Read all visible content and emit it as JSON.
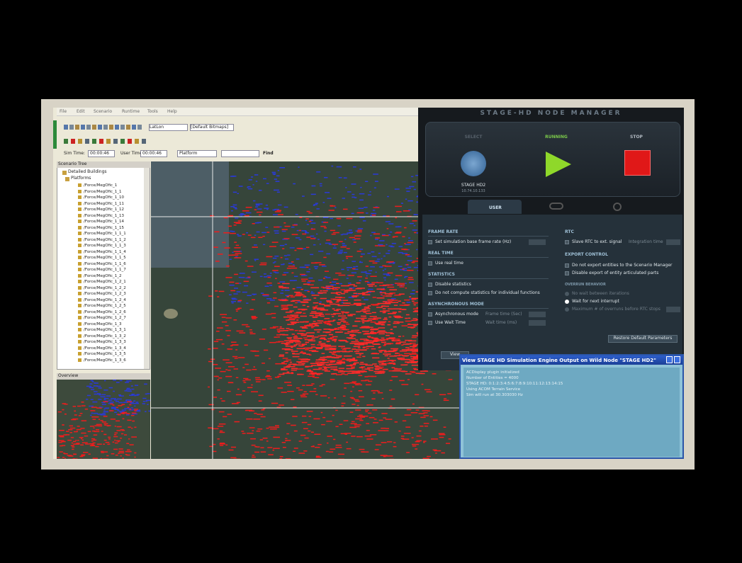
{
  "menu": [
    "File",
    "Edit",
    "Scenario",
    "Runtime",
    "Tools",
    "Help"
  ],
  "toolbar": {
    "coordinate_system": "LatLon",
    "map_layer": "[Default Bitmaps]",
    "sim_time_label": "Sim Time:",
    "sim_time": "00:00:46",
    "user_time_label": "User Time:",
    "user_time": "00:00:46",
    "entity_type": "Platform",
    "find": "Find"
  },
  "scenario_tree": {
    "title": "Scenario Tree",
    "groups": [
      "Detailed Buildings",
      "Platforms"
    ],
    "platforms": [
      "/Force/MegOfic_1",
      "/Force/MegOfic_1_1",
      "/Force/MegOfic_1_10",
      "/Force/MegOfic_1_11",
      "/Force/MegOfic_1_12",
      "/Force/MegOfic_1_13",
      "/Force/MegOfic_1_14",
      "/Force/MegOfic_1_15",
      "/Force/MegOfic_1_1_1",
      "/Force/MegOfic_1_1_2",
      "/Force/MegOfic_1_1_3",
      "/Force/MegOfic_1_1_4",
      "/Force/MegOfic_1_1_5",
      "/Force/MegOfic_1_1_6",
      "/Force/MegOfic_1_1_7",
      "/Force/MegOfic_1_2",
      "/Force/MegOfic_1_2_1",
      "/Force/MegOfic_1_2_2",
      "/Force/MegOfic_1_2_3",
      "/Force/MegOfic_1_2_4",
      "/Force/MegOfic_1_2_5",
      "/Force/MegOfic_1_2_6",
      "/Force/MegOfic_1_2_7",
      "/Force/MegOfic_1_3",
      "/Force/MegOfic_1_3_1",
      "/Force/MegOfic_1_3_2",
      "/Force/MegOfic_1_3_3",
      "/Force/MegOfic_1_3_4",
      "/Force/MegOfic_1_3_5",
      "/Force/MegOfic_1_3_6"
    ]
  },
  "overview": {
    "title": "Overview"
  },
  "node_manager": {
    "title": "STAGE-HD NODE MANAGER",
    "controls": {
      "select": "SELECT",
      "running": "RUNNING",
      "stop": "STOP"
    },
    "node_name": "STAGE HD2",
    "node_address": "10.74.10.133",
    "tab": "USER",
    "left_sections": [
      {
        "title": "FRAME RATE",
        "options": [
          "Set simulation base frame rate (Hz)"
        ]
      },
      {
        "title": "REAL TIME",
        "options": [
          "Use real time"
        ]
      },
      {
        "title": "STATISTICS",
        "options": [
          "Disable statistics",
          "Do not compute statistics for individual functions"
        ]
      },
      {
        "title": "ASYNCHRONOUS MODE",
        "options": [
          "Asynchronous mode",
          "Use Wait Time"
        ]
      }
    ],
    "async_fields": [
      "Frame time (Sec)",
      "Wait time (ms)"
    ],
    "rtc": {
      "title": "RTC",
      "option": "Slave RTC to ext. signal",
      "field": "Integration time"
    },
    "export_control": {
      "title": "EXPORT CONTROL",
      "options": [
        "Do not export entities to the Scenario Manager",
        "Disable export of entity articulated parts"
      ]
    },
    "overrun": {
      "title": "OVERRUN BEHAVIOR",
      "options": [
        "No wait between iterations",
        "Wait for next interrupt",
        "Maximum # of overruns before RTC stops"
      ]
    },
    "restore_button": "Restore Default Parameters",
    "view_button": "View"
  },
  "output_window": {
    "title": "View STAGE HD Simulation Engine Output on Wild Node \"STAGE HD2\"",
    "lines": [
      "ACDisplay plugin initialized",
      "Number of Entities = 4000",
      "STAGE HD: 0:1:2:3:4:5:6:7:8:9:10:11:12:13:14:15",
      "Using ACOM Terrain Service",
      "Sim will run at 30.303030 Hz"
    ]
  }
}
